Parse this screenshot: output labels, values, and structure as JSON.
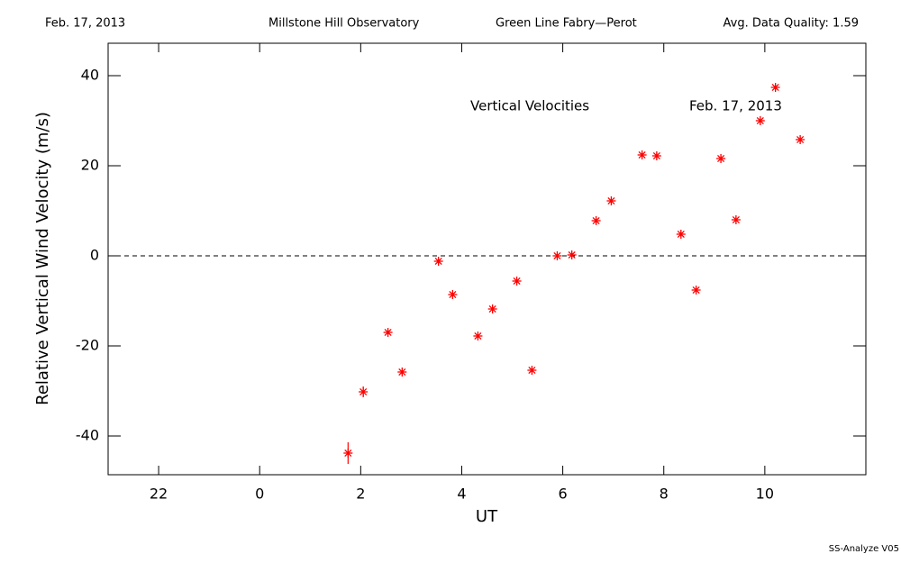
{
  "chart_data": {
    "type": "scatter",
    "header": [
      "Feb. 17, 2013",
      "Millstone Hill Observatory",
      "Green Line Fabry—Perot",
      "Avg. Data Quality: 1.59"
    ],
    "annotations": [
      "Vertical Velocities",
      "Feb. 17, 2013"
    ],
    "footer": "SS-Analyze V05",
    "xlabel": "UT",
    "ylabel": "Relative Vertical Wind Velocity (m/s)",
    "x": [
      1.75,
      2.05,
      2.54,
      2.82,
      3.54,
      3.82,
      4.32,
      4.61,
      5.09,
      5.39,
      5.89,
      6.18,
      6.66,
      6.96,
      7.57,
      7.86,
      8.34,
      8.64,
      9.13,
      9.43,
      9.91,
      10.21,
      10.7
    ],
    "values": [
      -43.8,
      -30.2,
      -17,
      -25.8,
      -1.2,
      -8.6,
      -17.8,
      -11.8,
      -5.6,
      -25.4,
      0,
      0.2,
      7.8,
      12.2,
      22.4,
      22.2,
      4.8,
      -7.6,
      21.6,
      8,
      30,
      37.4,
      25.8
    ],
    "errors": [
      2.4,
      1.2,
      0.5,
      0.5,
      0.5,
      0.5,
      0.5,
      0.5,
      0.5,
      0.5,
      0.5,
      0.5,
      0.5,
      0.5,
      0.5,
      0.5,
      0.5,
      0.5,
      0.5,
      0.5,
      0.5,
      0.5,
      0.5
    ],
    "color": "#ff0000",
    "xlim": [
      -3,
      12
    ],
    "xticks": [
      {
        "value": -2,
        "label": "22"
      },
      0,
      2,
      4,
      6,
      8,
      10
    ],
    "ylim": [
      -48.6,
      47.2
    ],
    "yticks": [
      -40,
      -20,
      0,
      20,
      40
    ],
    "hline": 0
  }
}
